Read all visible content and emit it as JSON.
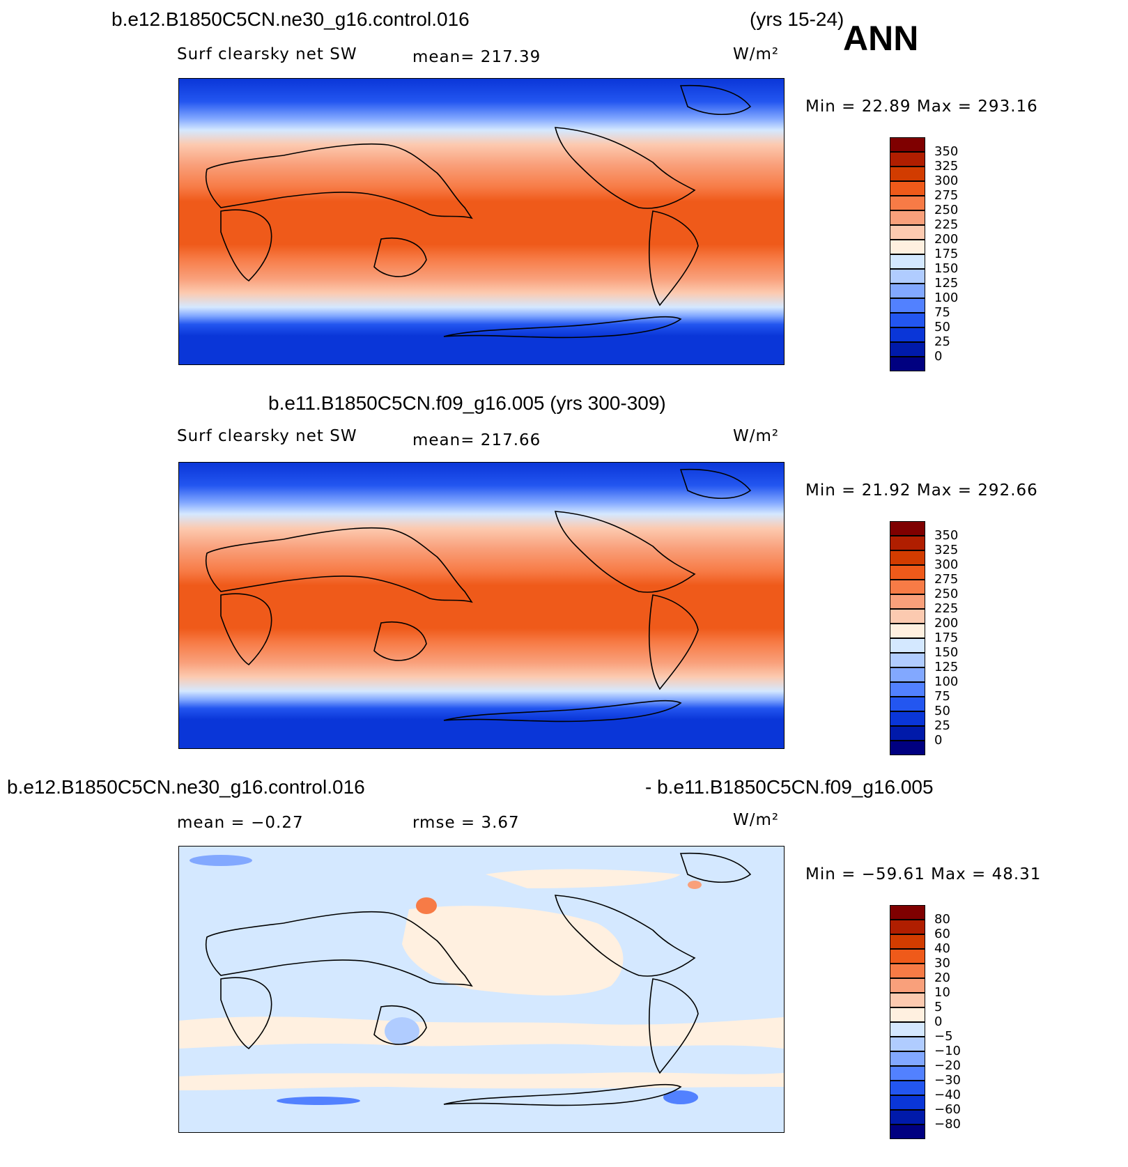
{
  "header": {
    "case1": "b.e12.B1850C5CN.ne30_g16.control.016",
    "case1_years": "(yrs 15-24)",
    "season": "ANN",
    "case2_full": "b.e11.B1850C5CN.f09_g16.005 (yrs 300-309)",
    "diff_left": "b.e12.B1850C5CN.ne30_g16.control.016",
    "diff_right": "- b.e11.B1850C5CN.f09_g16.005"
  },
  "panel1": {
    "variable": "Surf clearsky net SW",
    "mean_text": "mean=  217.39",
    "units": "W/m²",
    "minmax": "Min =   22.89  Max =  293.16"
  },
  "panel2": {
    "variable": "Surf clearsky net SW",
    "mean_text": "mean=  217.66",
    "units": "W/m²",
    "minmax": "Min =   21.92  Max =  292.66"
  },
  "panel3": {
    "mean_text": "mean =   −0.27",
    "rmse_text": "rmse =    3.67",
    "units": "W/m²",
    "minmax": "Min = −59.61  Max =   48.31"
  },
  "colorbar_abs": {
    "labels": [
      "350",
      "325",
      "300",
      "275",
      "250",
      "225",
      "200",
      "175",
      "150",
      "125",
      "100",
      "75",
      "50",
      "25",
      "0"
    ],
    "colors": [
      "#7f0000",
      "#b01e00",
      "#d23c00",
      "#ef5a1a",
      "#f77b46",
      "#f9a07b",
      "#fccab0",
      "#fff0e0",
      "#d4e8ff",
      "#b0ccff",
      "#82a8ff",
      "#5281ff",
      "#2356f0",
      "#0a36d8",
      "#001aaa",
      "#000080"
    ]
  },
  "colorbar_diff": {
    "labels": [
      "80",
      "60",
      "40",
      "30",
      "20",
      "10",
      "5",
      "0",
      "−5",
      "−10",
      "−20",
      "−30",
      "−40",
      "−60",
      "−80"
    ],
    "colors": [
      "#7f0000",
      "#b01e00",
      "#d23c00",
      "#ef5a1a",
      "#f77b46",
      "#f9a07b",
      "#fccab0",
      "#fff0e0",
      "#d4e8ff",
      "#b0ccff",
      "#82a8ff",
      "#5281ff",
      "#2356f0",
      "#0a36d8",
      "#001aaa",
      "#000080"
    ]
  }
}
